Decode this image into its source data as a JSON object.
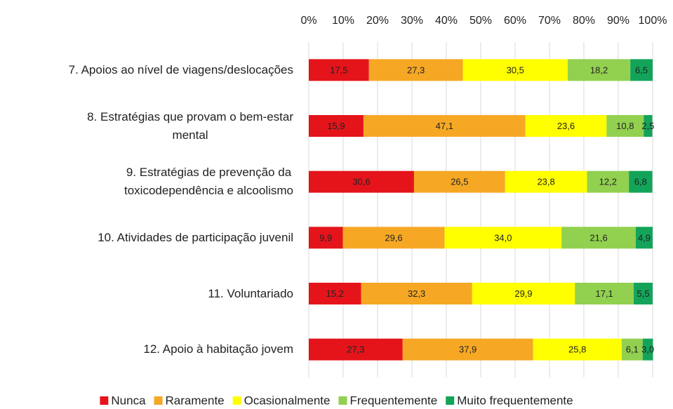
{
  "chart_data": {
    "type": "stacked_bar_horizontal",
    "categories": [
      "7. Apoios ao nível de viagens/deslocações",
      "8. Estratégias que provam o bem-estar\nmental",
      "9. Estratégias de prevenção da\ntoxicodependência e alcoolismo",
      "10. Atividades de participação juvenil",
      "11. Voluntariado",
      "12. Apoio à habitação jovem"
    ],
    "series": [
      {
        "name": "Nunca",
        "color": "#e5141b",
        "values": [
          17.5,
          15.9,
          30.6,
          9.9,
          15.2,
          27.3
        ],
        "value_labels": [
          "17,5",
          "15,9",
          "30,6",
          "9,9",
          "15,2",
          "27,3"
        ]
      },
      {
        "name": "Raramente",
        "color": "#f6a824",
        "values": [
          27.3,
          47.1,
          26.5,
          29.6,
          32.3,
          37.9
        ],
        "value_labels": [
          "27,3",
          "47,1",
          "26,5",
          "29,6",
          "32,3",
          "37,9"
        ]
      },
      {
        "name": "Ocasionalmente",
        "color": "#ffff00",
        "values": [
          30.5,
          23.6,
          23.8,
          34.0,
          29.9,
          25.8
        ],
        "value_labels": [
          "30,5",
          "23,6",
          "23,8",
          "34,0",
          "29,9",
          "25,8"
        ]
      },
      {
        "name": "Frequentemente",
        "color": "#92d050",
        "values": [
          18.2,
          10.8,
          12.2,
          21.6,
          17.1,
          6.1
        ],
        "value_labels": [
          "18,2",
          "10,8",
          "12,2",
          "21,6",
          "17,1",
          "6,1"
        ]
      },
      {
        "name": "Muito frequentemente",
        "color": "#13a45a",
        "values": [
          6.5,
          2.5,
          6.8,
          4.9,
          5.5,
          3.0
        ],
        "value_labels": [
          "6,5",
          "2,5",
          "6,8",
          "4,9",
          "5,5",
          "3,0"
        ]
      }
    ],
    "xlim": [
      0,
      100
    ],
    "xticks": [
      {
        "value": 0,
        "label": "0%"
      },
      {
        "value": 10,
        "label": "10%"
      },
      {
        "value": 20,
        "label": "20%"
      },
      {
        "value": 30,
        "label": "30%"
      },
      {
        "value": 40,
        "label": "40%"
      },
      {
        "value": 50,
        "label": "50%"
      },
      {
        "value": 60,
        "label": "60%"
      },
      {
        "value": 70,
        "label": "70%"
      },
      {
        "value": 80,
        "label": "80%"
      },
      {
        "value": 90,
        "label": "90%"
      },
      {
        "value": 100,
        "label": "100%"
      }
    ],
    "grid": true,
    "legend": "bottom"
  }
}
